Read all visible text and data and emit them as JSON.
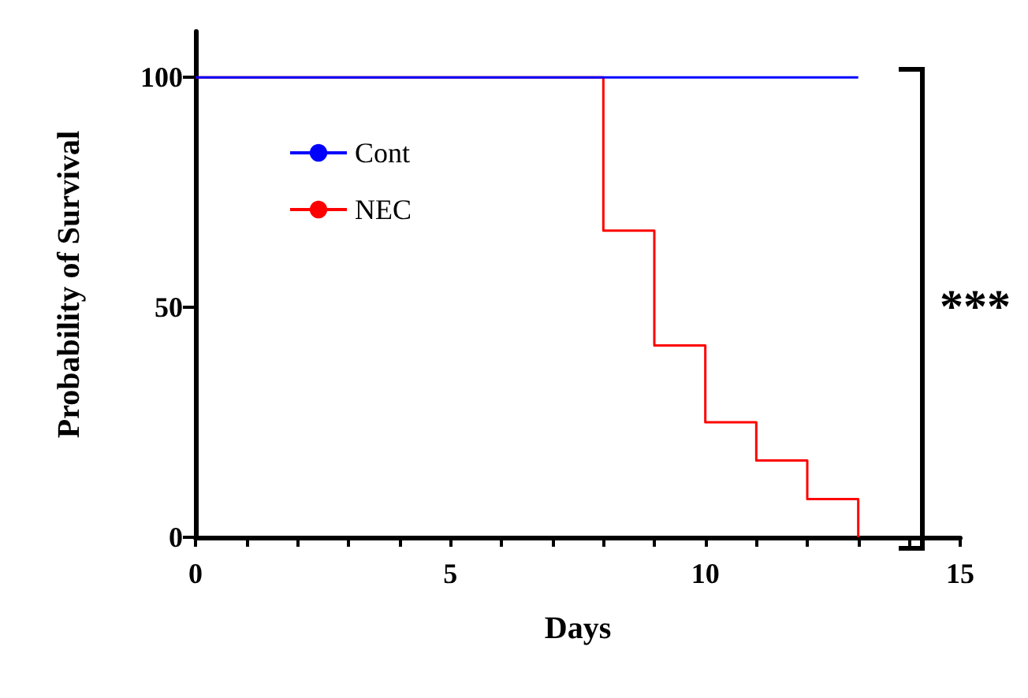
{
  "chart_data": {
    "type": "step",
    "xlabel": "Days",
    "ylabel": "Probability of Survival",
    "annotations": [
      "***"
    ],
    "xlim": [
      0,
      15
    ],
    "xticks": [
      0,
      5,
      10,
      15
    ],
    "ylim": [
      0,
      110
    ],
    "yticks": [
      0,
      50,
      100
    ],
    "series": [
      {
        "name": "Cont",
        "color": "#0000ff",
        "x": [
          0,
          13
        ],
        "values": [
          100,
          100
        ]
      },
      {
        "name": "NEC",
        "color": "#ff0000",
        "x": [
          0,
          8,
          9,
          10,
          11,
          12,
          13
        ],
        "values": [
          100,
          66.7,
          41.7,
          25,
          16.7,
          8.3,
          0
        ]
      }
    ],
    "grid": false,
    "legend": "top left"
  }
}
